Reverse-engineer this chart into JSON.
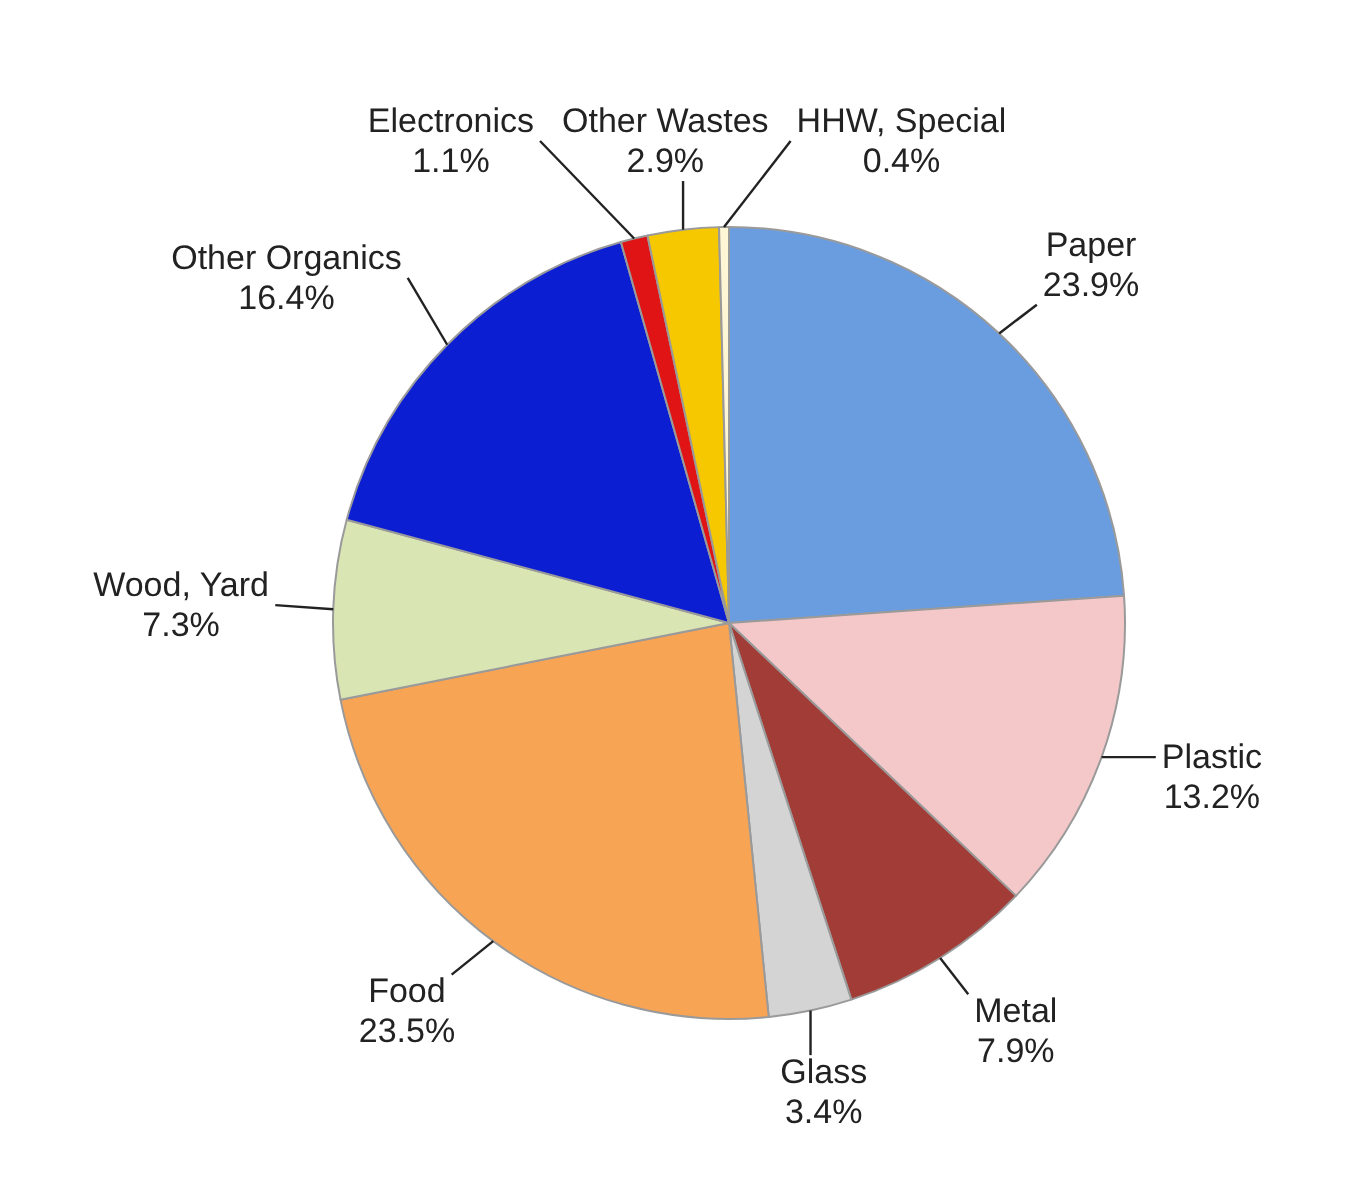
{
  "chart_data": {
    "type": "pie",
    "categories": [
      "Paper",
      "Plastic",
      "Metal",
      "Glass",
      "Food",
      "Wood, Yard",
      "Other Organics",
      "Electronics",
      "Other Wastes",
      "HHW, Special"
    ],
    "values": [
      23.9,
      13.2,
      7.9,
      3.4,
      23.5,
      7.3,
      16.4,
      1.1,
      2.9,
      0.4
    ],
    "value_labels": [
      "23.9%",
      "13.2%",
      "7.9%",
      "3.4%",
      "23.5%",
      "7.3%",
      "16.4%",
      "1.1%",
      "2.9%",
      "0.4%"
    ],
    "colors": [
      "#6a9de0",
      "#f4c8c8",
      "#a23c36",
      "#d4d4d4",
      "#f8a455",
      "#d9e5b3",
      "#0c1ed2",
      "#e01414",
      "#f6c800",
      "#fff6d6"
    ],
    "legend": false
  }
}
